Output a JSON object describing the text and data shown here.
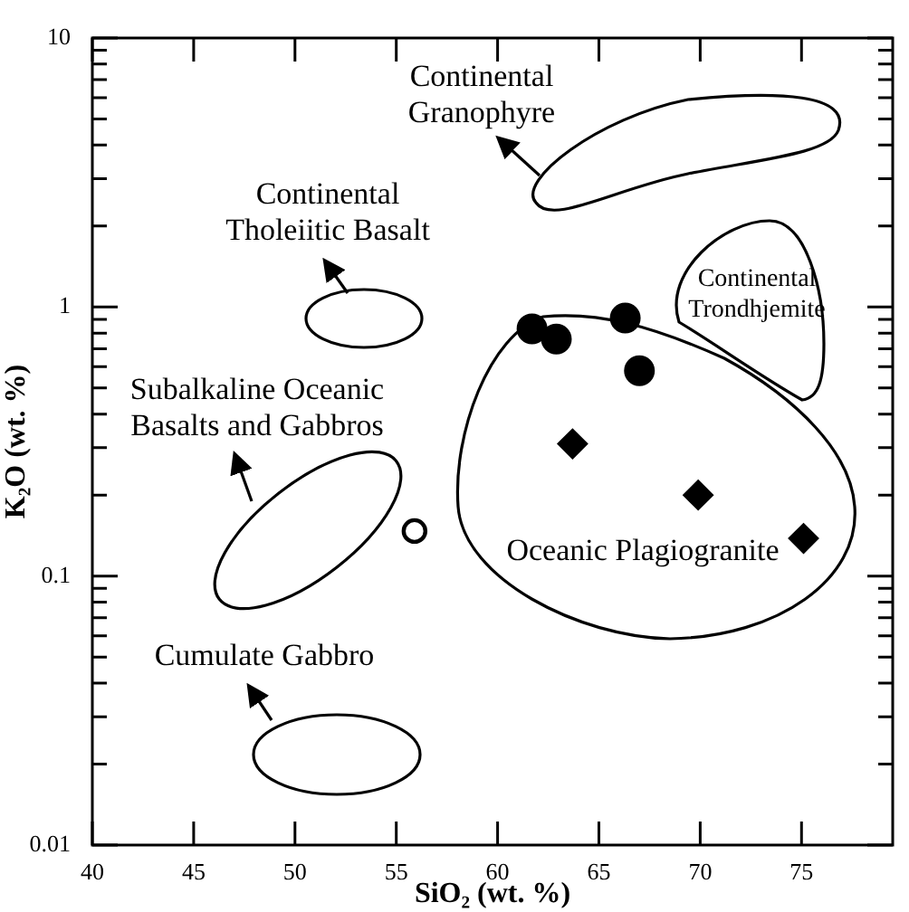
{
  "chart_data": {
    "type": "scatter",
    "xlabel": "SiO₂ (wt. %)",
    "ylabel": "K₂O (wt. %)",
    "log": "y",
    "xlim": [
      40,
      79.5
    ],
    "ylim": [
      0.01,
      10
    ],
    "xticks": [
      40,
      45,
      50,
      55,
      60,
      65,
      70,
      75
    ],
    "yticks": [
      0.01,
      {
        "value": 0.02,
        "label": null
      },
      {
        "value": 0.03,
        "label": null
      },
      {
        "value": 0.04,
        "label": null
      },
      {
        "value": 0.05,
        "label": null
      },
      {
        "value": 0.06,
        "label": null
      },
      {
        "value": 0.07,
        "label": null
      },
      {
        "value": 0.08,
        "label": null
      },
      {
        "value": 0.09,
        "label": null
      },
      0.1,
      {
        "value": 0.2,
        "label": null
      },
      {
        "value": 0.3,
        "label": null
      },
      {
        "value": 0.4,
        "label": null
      },
      {
        "value": 0.5,
        "label": null
      },
      {
        "value": 0.6,
        "label": null
      },
      {
        "value": 0.7,
        "label": null
      },
      {
        "value": 0.8,
        "label": null
      },
      {
        "value": 0.9,
        "label": null
      },
      1,
      {
        "value": 2,
        "label": null
      },
      {
        "value": 3,
        "label": null
      },
      {
        "value": 4,
        "label": null
      },
      {
        "value": 5,
        "label": null
      },
      {
        "value": 6,
        "label": null
      },
      {
        "value": 7,
        "label": null
      },
      {
        "value": 8,
        "label": null
      },
      {
        "value": 9,
        "label": null
      },
      10
    ],
    "grid": false,
    "legend": false,
    "series": [
      {
        "color": "#000000",
        "marker": "circle",
        "x": [
          61.7,
          62.9,
          66.3,
          67.0
        ],
        "values": [
          0.83,
          0.76,
          0.91,
          0.58
        ]
      },
      {
        "color": "#ffffff",
        "marker": "circle",
        "x": [
          55.9
        ],
        "values": [
          0.147
        ]
      },
      {
        "color": "#000000",
        "marker": "diamond",
        "x": [
          63.7,
          69.9,
          75.1
        ],
        "values": [
          0.31,
          0.2,
          0.138
        ]
      }
    ],
    "annotations": [
      "Continental\nGranophyre",
      "Continental\nTholeiitic Basalt",
      "Subalkaline Oceanic\nBasalts and Gabbros",
      "Cumulate Gabbro",
      "Continental\nTrondhjemite",
      "Oceanic Plagiogranite"
    ]
  }
}
